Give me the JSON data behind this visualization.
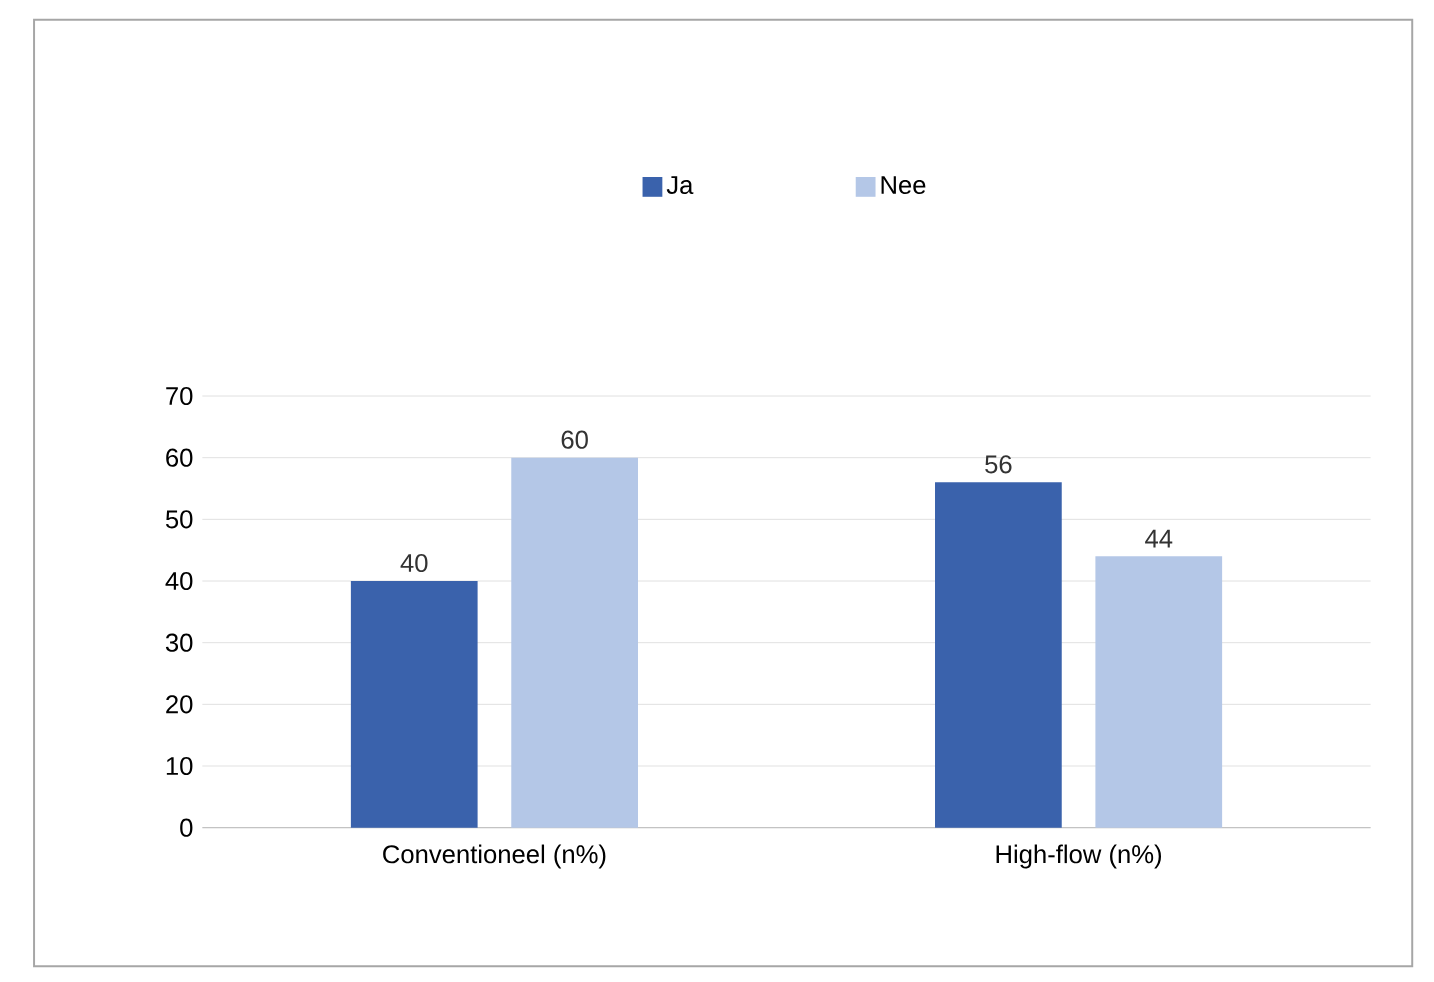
{
  "chart_data": {
    "type": "bar",
    "categories": [
      "Conventioneel (n%)",
      "High-flow (n%)"
    ],
    "series": [
      {
        "name": "Ja",
        "color": "#3a62ac",
        "values": [
          40,
          56
        ]
      },
      {
        "name": "Nee",
        "color": "#b4c7e7",
        "values": [
          60,
          44
        ]
      }
    ],
    "ylim": [
      0,
      70
    ],
    "yticks": [
      0,
      10,
      20,
      30,
      40,
      50,
      60,
      70
    ],
    "grid": "y",
    "legend": "top",
    "data_labels": true
  }
}
